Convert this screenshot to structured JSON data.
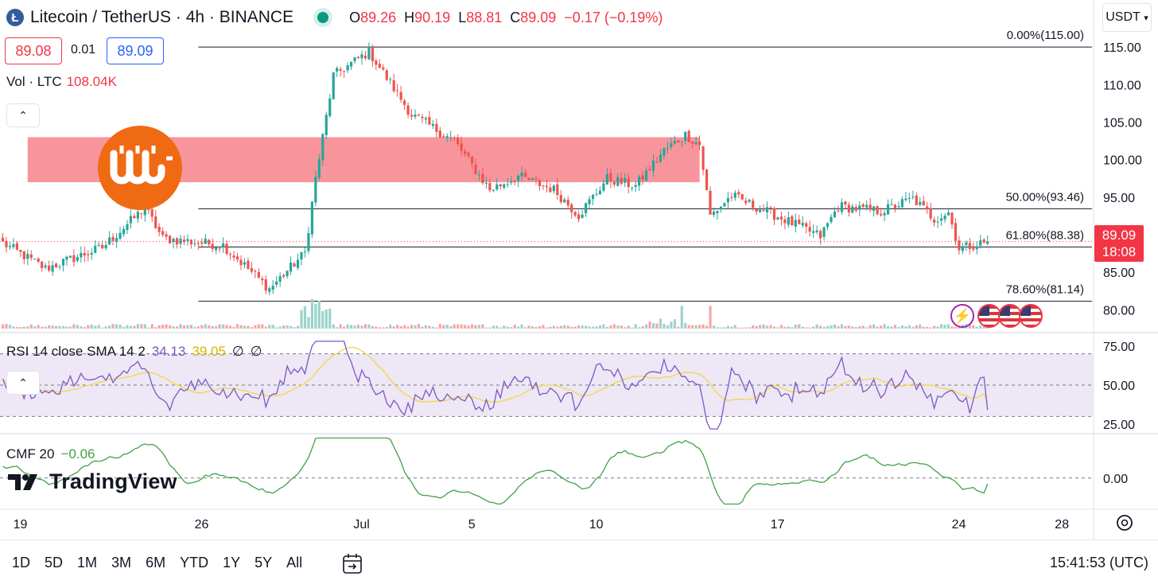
{
  "header": {
    "symbol_icon": "litecoin-icon",
    "title": "Litecoin / TetherUS · 4h · BINANCE",
    "ohlc": {
      "o_label": "O",
      "o": "89.26",
      "h_label": "H",
      "h": "90.19",
      "l_label": "L",
      "l": "88.81",
      "c_label": "C",
      "c": "89.09",
      "change": "−0.17 (−0.19%)"
    },
    "sell_price": "89.08",
    "spread": "0.01",
    "buy_price": "89.09",
    "currency_button": "USDT"
  },
  "volume_legend": {
    "label": "Vol · LTC",
    "value": "108.04K"
  },
  "rsi_legend": {
    "label": "RSI 14 close SMA 14 2",
    "rsi": "34.13",
    "sma": "39.05",
    "a": "∅",
    "b": "∅"
  },
  "cmf_legend": {
    "label": "CMF 20",
    "value": "−0.06"
  },
  "price_tag": {
    "price": "89.09",
    "countdown": "18:08"
  },
  "watermark": "TradingView",
  "footer": {
    "ranges": [
      "1D",
      "5D",
      "1M",
      "3M",
      "6M",
      "YTD",
      "1Y",
      "5Y",
      "All"
    ],
    "clock": "15:41:53 (UTC)"
  },
  "colors": {
    "up": "#26a69a",
    "down": "#ef5350",
    "zone": "#f7838b",
    "rsi": "#7e57c2",
    "rsi_sma": "#f5d742",
    "cmf": "#43a047",
    "accent": "#f23645",
    "logo": "#f06a14"
  },
  "chart_data": {
    "type": "candlestick",
    "price_axis": {
      "ticks": [
        80,
        85,
        90,
        95,
        100,
        105,
        110,
        115
      ],
      "labels": [
        "80.00",
        "85.00",
        "",
        "95.00",
        "100.00",
        "105.00",
        "110.00",
        "115.00"
      ],
      "ylim": [
        77.5,
        116.5
      ]
    },
    "x_axis": {
      "tick_labels": [
        "19",
        "26",
        "Jul",
        "5",
        "10",
        "17",
        "24",
        "28"
      ],
      "tick_bars": [
        0,
        51,
        96,
        127,
        162,
        213,
        264,
        293
      ]
    },
    "fibonacci": [
      {
        "label": "0.00%(115.00)",
        "price": 115.0
      },
      {
        "label": "50.00%(93.46)",
        "price": 93.46
      },
      {
        "label": "61.80%(88.38)",
        "price": 88.38
      },
      {
        "label": "78.60%(81.14)",
        "price": 81.14
      }
    ],
    "resistance_zone": {
      "from_price": 97.0,
      "to_price": 103.0
    },
    "key_points": [
      [
        0,
        88.9
      ],
      [
        12,
        85.5
      ],
      [
        28,
        88.3
      ],
      [
        40,
        93.6
      ],
      [
        45,
        89.5
      ],
      [
        62,
        88.6
      ],
      [
        75,
        82.8
      ],
      [
        85,
        87.6
      ],
      [
        88,
        97.5
      ],
      [
        93,
        111.2
      ],
      [
        103,
        114.4
      ],
      [
        115,
        106.0
      ],
      [
        127,
        102.5
      ],
      [
        137,
        96.0
      ],
      [
        145,
        97.8
      ],
      [
        155,
        96.0
      ],
      [
        162,
        92.6
      ],
      [
        170,
        97.5
      ],
      [
        178,
        96.5
      ],
      [
        186,
        101.2
      ],
      [
        192,
        103.3
      ],
      [
        196,
        102.0
      ],
      [
        199,
        92.5
      ],
      [
        205,
        95.2
      ],
      [
        220,
        92.0
      ],
      [
        230,
        89.8
      ],
      [
        235,
        93.8
      ],
      [
        247,
        93.1
      ],
      [
        256,
        94.8
      ],
      [
        262,
        92.1
      ],
      [
        266,
        93.0
      ],
      [
        269,
        88.2
      ],
      [
        277,
        89.09
      ]
    ],
    "rsi": {
      "ylim": [
        20,
        80
      ],
      "ticks": [
        25,
        50,
        75
      ],
      "bands": [
        30,
        70
      ],
      "last": 34.13,
      "sma_last": 39.05
    },
    "cmf": {
      "ylim": [
        -0.28,
        0.42
      ],
      "ticks": [
        0
      ],
      "labels": [
        "0.00"
      ],
      "last": -0.06
    }
  }
}
